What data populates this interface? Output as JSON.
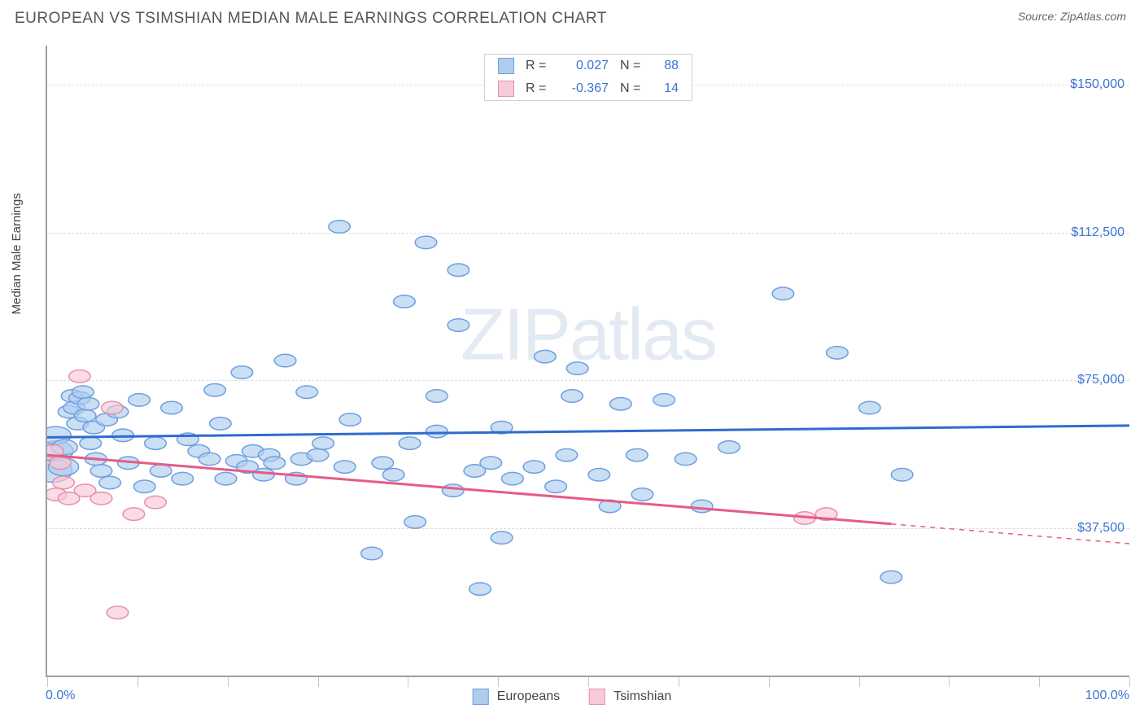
{
  "title": "EUROPEAN VS TSIMSHIAN MEDIAN MALE EARNINGS CORRELATION CHART",
  "source": "Source: ZipAtlas.com",
  "watermark": {
    "part1": "ZIP",
    "part2": "atlas"
  },
  "chart": {
    "type": "scatter",
    "ylabel": "Median Male Earnings",
    "xlim": [
      0,
      100
    ],
    "ylim": [
      0,
      160000
    ],
    "x_ticks_minor": [
      0,
      8.33,
      16.67,
      25,
      33.33,
      41.67,
      50,
      58.33,
      66.67,
      75,
      83.33,
      91.67,
      100
    ],
    "x_ticks_labels": [
      {
        "pct": 0,
        "label": "0.0%",
        "align": "left"
      },
      {
        "pct": 100,
        "label": "100.0%",
        "align": "right"
      }
    ],
    "y_gridlines": [
      {
        "y": 37500,
        "label": "$37,500"
      },
      {
        "y": 75000,
        "label": "$75,000"
      },
      {
        "y": 112500,
        "label": "$112,500"
      },
      {
        "y": 150000,
        "label": "$150,000"
      }
    ],
    "background_color": "#ffffff",
    "grid_color": "#dcdcdc",
    "axis_color": "#9aa0a6",
    "label_color": "#3b74d4",
    "series": [
      {
        "name": "Europeans",
        "fill": "#aeccee",
        "stroke": "#6e9fe0",
        "trend_stroke": "#2f6bd0",
        "trend_width": 3,
        "legend_R": "0.027",
        "legend_N": "88",
        "trend": {
          "x1": 0,
          "y1": 60500,
          "x2": 100,
          "y2": 63500,
          "extrap_from": 100
        },
        "points": [
          {
            "x": 0.5,
            "y": 52000,
            "r": 18
          },
          {
            "x": 0.8,
            "y": 57000,
            "r": 16
          },
          {
            "x": 0.8,
            "y": 61000,
            "r": 14
          },
          {
            "x": 1.5,
            "y": 53000,
            "r": 14
          },
          {
            "x": 1.6,
            "y": 58000,
            "r": 12
          },
          {
            "x": 2,
            "y": 67000,
            "r": 10
          },
          {
            "x": 2.3,
            "y": 71000,
            "r": 10
          },
          {
            "x": 2.5,
            "y": 68000,
            "r": 10
          },
          {
            "x": 2.8,
            "y": 64000,
            "r": 10
          },
          {
            "x": 3,
            "y": 70500,
            "r": 10
          },
          {
            "x": 3.3,
            "y": 72000,
            "r": 10
          },
          {
            "x": 3.5,
            "y": 66000,
            "r": 10
          },
          {
            "x": 3.8,
            "y": 69000,
            "r": 10
          },
          {
            "x": 4,
            "y": 59000,
            "r": 10
          },
          {
            "x": 4.3,
            "y": 63000,
            "r": 10
          },
          {
            "x": 4.5,
            "y": 55000,
            "r": 10
          },
          {
            "x": 5,
            "y": 52000,
            "r": 10
          },
          {
            "x": 5.5,
            "y": 65000,
            "r": 10
          },
          {
            "x": 5.8,
            "y": 49000,
            "r": 10
          },
          {
            "x": 6.5,
            "y": 67000,
            "r": 10
          },
          {
            "x": 7,
            "y": 61000,
            "r": 10
          },
          {
            "x": 7.5,
            "y": 54000,
            "r": 10
          },
          {
            "x": 8.5,
            "y": 70000,
            "r": 10
          },
          {
            "x": 9,
            "y": 48000,
            "r": 10
          },
          {
            "x": 10,
            "y": 59000,
            "r": 10
          },
          {
            "x": 10.5,
            "y": 52000,
            "r": 10
          },
          {
            "x": 11.5,
            "y": 68000,
            "r": 10
          },
          {
            "x": 12.5,
            "y": 50000,
            "r": 10
          },
          {
            "x": 13,
            "y": 60000,
            "r": 10
          },
          {
            "x": 14,
            "y": 57000,
            "r": 10
          },
          {
            "x": 15,
            "y": 55000,
            "r": 10
          },
          {
            "x": 15.5,
            "y": 72500,
            "r": 10
          },
          {
            "x": 16,
            "y": 64000,
            "r": 10
          },
          {
            "x": 16.5,
            "y": 50000,
            "r": 10
          },
          {
            "x": 17.5,
            "y": 54500,
            "r": 10
          },
          {
            "x": 18,
            "y": 77000,
            "r": 10
          },
          {
            "x": 18.5,
            "y": 53000,
            "r": 10
          },
          {
            "x": 19,
            "y": 57000,
            "r": 10
          },
          {
            "x": 20,
            "y": 51000,
            "r": 10
          },
          {
            "x": 20.5,
            "y": 56000,
            "r": 10
          },
          {
            "x": 21,
            "y": 54000,
            "r": 10
          },
          {
            "x": 22,
            "y": 80000,
            "r": 10
          },
          {
            "x": 23,
            "y": 50000,
            "r": 10
          },
          {
            "x": 23.5,
            "y": 55000,
            "r": 10
          },
          {
            "x": 24,
            "y": 72000,
            "r": 10
          },
          {
            "x": 25,
            "y": 56000,
            "r": 10
          },
          {
            "x": 25.5,
            "y": 59000,
            "r": 10
          },
          {
            "x": 27,
            "y": 114000,
            "r": 10
          },
          {
            "x": 27.5,
            "y": 53000,
            "r": 10
          },
          {
            "x": 28,
            "y": 65000,
            "r": 10
          },
          {
            "x": 30,
            "y": 31000,
            "r": 10
          },
          {
            "x": 31,
            "y": 54000,
            "r": 10
          },
          {
            "x": 32,
            "y": 51000,
            "r": 10
          },
          {
            "x": 33,
            "y": 95000,
            "r": 10
          },
          {
            "x": 33.5,
            "y": 59000,
            "r": 10
          },
          {
            "x": 34,
            "y": 39000,
            "r": 10
          },
          {
            "x": 35,
            "y": 110000,
            "r": 10
          },
          {
            "x": 36,
            "y": 62000,
            "r": 10
          },
          {
            "x": 36,
            "y": 71000,
            "r": 10
          },
          {
            "x": 37.5,
            "y": 47000,
            "r": 10
          },
          {
            "x": 38,
            "y": 89000,
            "r": 10
          },
          {
            "x": 38,
            "y": 103000,
            "r": 10
          },
          {
            "x": 39.5,
            "y": 52000,
            "r": 10
          },
          {
            "x": 40,
            "y": 22000,
            "r": 10
          },
          {
            "x": 41,
            "y": 54000,
            "r": 10
          },
          {
            "x": 42,
            "y": 63000,
            "r": 10
          },
          {
            "x": 42,
            "y": 35000,
            "r": 10
          },
          {
            "x": 43,
            "y": 50000,
            "r": 10
          },
          {
            "x": 45,
            "y": 53000,
            "r": 10
          },
          {
            "x": 46,
            "y": 81000,
            "r": 10
          },
          {
            "x": 47,
            "y": 48000,
            "r": 10
          },
          {
            "x": 48,
            "y": 56000,
            "r": 10
          },
          {
            "x": 48.5,
            "y": 71000,
            "r": 10
          },
          {
            "x": 49,
            "y": 78000,
            "r": 10
          },
          {
            "x": 51,
            "y": 51000,
            "r": 10
          },
          {
            "x": 52,
            "y": 43000,
            "r": 10
          },
          {
            "x": 53,
            "y": 69000,
            "r": 10
          },
          {
            "x": 54.5,
            "y": 56000,
            "r": 10
          },
          {
            "x": 55,
            "y": 46000,
            "r": 10
          },
          {
            "x": 57,
            "y": 70000,
            "r": 10
          },
          {
            "x": 59,
            "y": 55000,
            "r": 10
          },
          {
            "x": 60.5,
            "y": 43000,
            "r": 10
          },
          {
            "x": 63,
            "y": 58000,
            "r": 10
          },
          {
            "x": 68,
            "y": 97000,
            "r": 10
          },
          {
            "x": 73,
            "y": 82000,
            "r": 10
          },
          {
            "x": 76,
            "y": 68000,
            "r": 10
          },
          {
            "x": 79,
            "y": 51000,
            "r": 10
          },
          {
            "x": 78,
            "y": 25000,
            "r": 10
          }
        ]
      },
      {
        "name": "Tsimshian",
        "fill": "#f6cad6",
        "stroke": "#e890ab",
        "trend_stroke": "#e65b87",
        "trend_width": 3,
        "legend_R": "-0.367",
        "legend_N": "14",
        "trend": {
          "x1": 0,
          "y1": 56000,
          "x2": 78,
          "y2": 38500,
          "extrap_from": 78
        },
        "trend_extrap": {
          "x1": 78,
          "y1": 38500,
          "x2": 100,
          "y2": 33500
        },
        "points": [
          {
            "x": 0.5,
            "y": 57000,
            "r": 10
          },
          {
            "x": 0.8,
            "y": 46000,
            "r": 10
          },
          {
            "x": 1.2,
            "y": 54000,
            "r": 10
          },
          {
            "x": 1.5,
            "y": 49000,
            "r": 10
          },
          {
            "x": 2,
            "y": 45000,
            "r": 10
          },
          {
            "x": 3,
            "y": 76000,
            "r": 10
          },
          {
            "x": 3.5,
            "y": 47000,
            "r": 10
          },
          {
            "x": 5,
            "y": 45000,
            "r": 10
          },
          {
            "x": 6,
            "y": 68000,
            "r": 10
          },
          {
            "x": 6.5,
            "y": 16000,
            "r": 10
          },
          {
            "x": 8,
            "y": 41000,
            "r": 10
          },
          {
            "x": 10,
            "y": 44000,
            "r": 10
          },
          {
            "x": 70,
            "y": 40000,
            "r": 10
          },
          {
            "x": 72,
            "y": 41000,
            "r": 10
          }
        ]
      }
    ],
    "legend_bottom": [
      {
        "label": "Europeans",
        "fill": "#aeccee",
        "stroke": "#6e9fe0"
      },
      {
        "label": "Tsimshian",
        "fill": "#f6cad6",
        "stroke": "#e890ab"
      }
    ]
  }
}
